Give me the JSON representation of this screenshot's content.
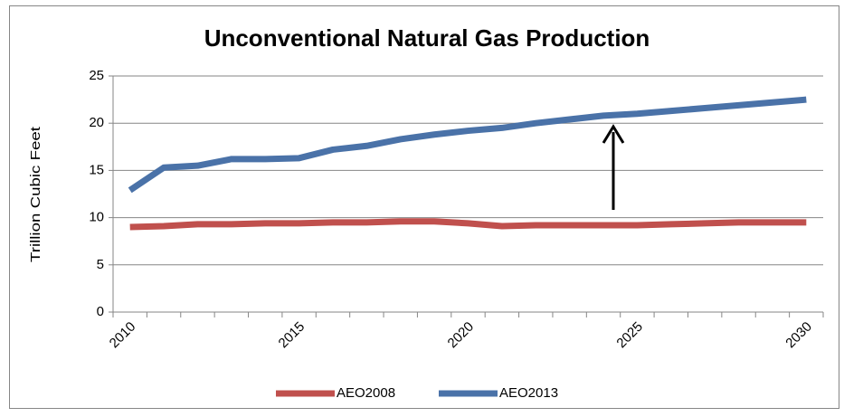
{
  "chart_data": {
    "type": "line",
    "title": "Unconventional Natural Gas Production",
    "y_label": "Trillion Cubic Feet",
    "categories": [
      "2010",
      null,
      null,
      null,
      null,
      "2015",
      null,
      null,
      null,
      null,
      "2020",
      null,
      null,
      null,
      null,
      "2025",
      null,
      null,
      null,
      null,
      "2030"
    ],
    "series": [
      {
        "name": "AEO2008",
        "color": "#c0504d",
        "values": [
          9.0,
          9.1,
          9.3,
          9.3,
          9.4,
          9.4,
          9.5,
          9.5,
          9.6,
          9.6,
          9.4,
          9.1,
          9.2,
          9.2,
          9.2,
          9.2,
          9.3,
          9.4,
          9.5,
          9.5,
          9.5
        ]
      },
      {
        "name": "AEO2013",
        "color": "#4a72a8",
        "values": [
          12.9,
          15.3,
          15.5,
          16.2,
          16.2,
          16.3,
          17.2,
          17.6,
          18.3,
          18.8,
          19.2,
          19.5,
          20.0,
          20.4,
          20.8,
          21.0,
          21.3,
          21.6,
          21.9,
          22.2,
          22.5
        ]
      }
    ],
    "ylim": [
      0,
      25
    ],
    "yticks": [
      0,
      5,
      10,
      15,
      20,
      25
    ],
    "grid": true,
    "legend": "bottom"
  }
}
